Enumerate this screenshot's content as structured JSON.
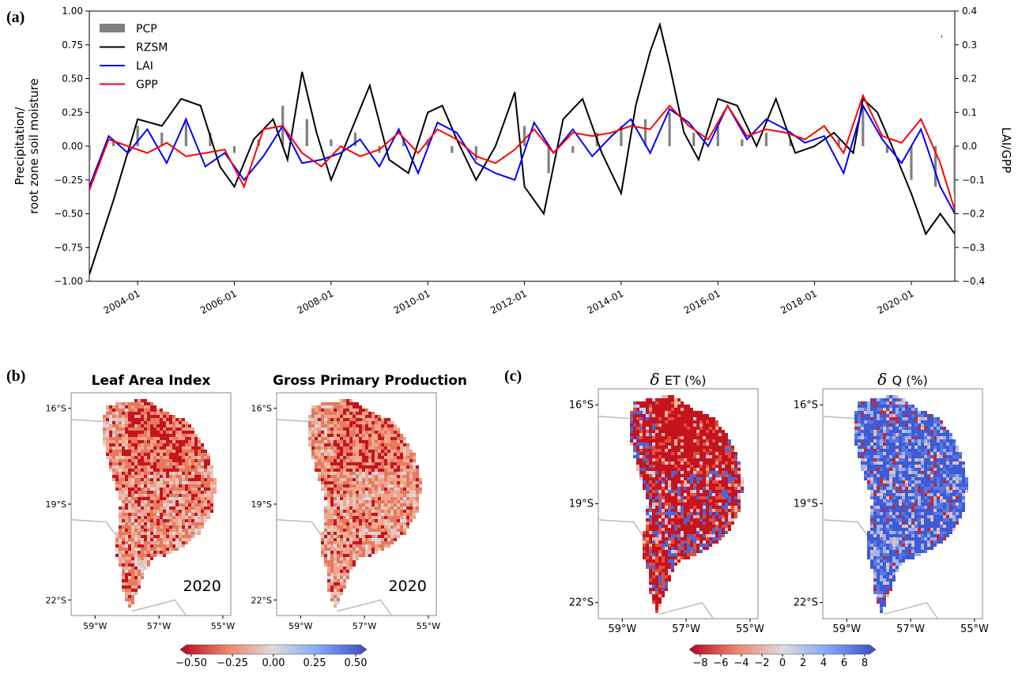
{
  "panel_labels": {
    "a": "(a)",
    "b": "(b)",
    "c": "(c)"
  },
  "chart_data": [
    {
      "type": "line",
      "panel": "(a)",
      "ylabel_left": "Precipitation/ root zone soil moisture",
      "ylabel_right": "LAI/GPP",
      "ylim_left": [
        -1.0,
        1.0
      ],
      "ylim_right": [
        -0.4,
        0.4
      ],
      "yticks_left": [
        "1.00",
        "0.75",
        "0.50",
        "0.25",
        "0.00",
        "−0.25",
        "−0.50",
        "−0.75",
        "−1.00"
      ],
      "yticks_right": [
        "0.4",
        "0.3",
        "0.2",
        "0.1",
        "0.0",
        "−0.1",
        "−0.2",
        "−0.3",
        "−0.4"
      ],
      "xlim": [
        2003.0,
        2020.9
      ],
      "xticks": [
        "2004-01",
        "2006-01",
        "2008-01",
        "2010-01",
        "2012-01",
        "2014-01",
        "2016-01",
        "2018-01",
        "2020-01"
      ],
      "legend_position": "top-left",
      "legend": [
        "PCP",
        "RZSM",
        "LAI",
        "GPP"
      ],
      "colors": {
        "PCP": "#808080",
        "RZSM": "#000000",
        "LAI": "#0000ff",
        "GPP": "#ff0000"
      },
      "series": [
        {
          "name": "PCP",
          "axis": "left",
          "kind": "bar",
          "x": [
            2003.0,
            2003.5,
            2004.0,
            2004.5,
            2005.0,
            2005.5,
            2006.0,
            2006.5,
            2007.0,
            2007.5,
            2008.0,
            2008.5,
            2009.0,
            2009.5,
            2010.0,
            2010.5,
            2011.0,
            2011.5,
            2012.0,
            2012.5,
            2013.0,
            2013.5,
            2014.0,
            2014.5,
            2015.0,
            2015.5,
            2016.0,
            2016.5,
            2017.0,
            2017.5,
            2018.0,
            2018.5,
            2019.0,
            2019.5,
            2020.0,
            2020.5,
            2020.9
          ],
          "values": [
            -0.1,
            0.05,
            0.15,
            0.1,
            0.2,
            0.1,
            -0.05,
            0.05,
            0.3,
            0.2,
            0.05,
            0.1,
            -0.05,
            0.05,
            0.05,
            -0.05,
            -0.1,
            0.0,
            0.15,
            -0.2,
            -0.05,
            0.1,
            0.15,
            0.2,
            0.25,
            0.1,
            0.15,
            0.05,
            0.1,
            0.05,
            0.0,
            0.05,
            0.3,
            -0.05,
            -0.25,
            -0.3,
            -0.35
          ]
        },
        {
          "name": "RZSM",
          "axis": "left",
          "x": [
            2003.0,
            2003.5,
            2004.0,
            2004.5,
            2004.9,
            2005.3,
            2005.7,
            2006.0,
            2006.4,
            2006.8,
            2007.1,
            2007.4,
            2007.7,
            2008.0,
            2008.4,
            2008.8,
            2009.2,
            2009.6,
            2010.0,
            2010.3,
            2010.6,
            2011.0,
            2011.4,
            2011.8,
            2012.0,
            2012.4,
            2012.8,
            2013.2,
            2013.6,
            2014.0,
            2014.3,
            2014.6,
            2014.8,
            2015.0,
            2015.3,
            2015.6,
            2016.0,
            2016.4,
            2016.8,
            2017.2,
            2017.6,
            2018.0,
            2018.4,
            2018.8,
            2019.0,
            2019.3,
            2019.6,
            2020.0,
            2020.3,
            2020.6,
            2020.9
          ],
          "values": [
            -0.95,
            -0.4,
            0.2,
            0.15,
            0.35,
            0.3,
            -0.15,
            -0.3,
            0.05,
            0.2,
            -0.1,
            0.55,
            0.1,
            -0.25,
            0.1,
            0.45,
            -0.1,
            -0.2,
            0.25,
            0.3,
            0.05,
            -0.25,
            0.0,
            0.4,
            -0.3,
            -0.5,
            0.2,
            0.35,
            -0.05,
            -0.35,
            0.3,
            0.7,
            0.9,
            0.6,
            0.1,
            -0.1,
            0.35,
            0.3,
            0.0,
            0.35,
            -0.05,
            0.0,
            0.1,
            -0.05,
            0.35,
            0.25,
            0.0,
            -0.35,
            -0.65,
            -0.5,
            -0.65
          ]
        },
        {
          "name": "LAI",
          "axis": "right",
          "x": [
            2003.0,
            2003.4,
            2003.8,
            2004.2,
            2004.6,
            2005.0,
            2005.4,
            2005.8,
            2006.2,
            2006.6,
            2007.0,
            2007.4,
            2007.8,
            2008.2,
            2008.6,
            2009.0,
            2009.4,
            2009.8,
            2010.2,
            2010.6,
            2011.0,
            2011.4,
            2011.8,
            2012.2,
            2012.6,
            2013.0,
            2013.4,
            2013.8,
            2014.2,
            2014.6,
            2015.0,
            2015.4,
            2015.8,
            2016.2,
            2016.6,
            2017.0,
            2017.4,
            2017.8,
            2018.2,
            2018.6,
            2019.0,
            2019.4,
            2019.8,
            2020.2,
            2020.6,
            2020.9
          ],
          "values": [
            -0.12,
            0.03,
            -0.02,
            0.05,
            -0.05,
            0.08,
            -0.06,
            -0.02,
            -0.1,
            -0.03,
            0.06,
            -0.05,
            -0.04,
            -0.02,
            0.02,
            -0.06,
            0.05,
            -0.08,
            0.07,
            0.04,
            -0.05,
            -0.08,
            -0.1,
            0.07,
            -0.02,
            0.05,
            -0.03,
            0.03,
            0.08,
            -0.02,
            0.11,
            0.07,
            0.0,
            0.12,
            0.02,
            0.08,
            0.05,
            0.01,
            0.03,
            -0.08,
            0.12,
            0.02,
            -0.05,
            0.05,
            -0.12,
            -0.2
          ]
        },
        {
          "name": "GPP",
          "axis": "right",
          "x": [
            2003.0,
            2003.4,
            2003.8,
            2004.2,
            2004.6,
            2005.0,
            2005.4,
            2005.8,
            2006.2,
            2006.6,
            2007.0,
            2007.4,
            2007.8,
            2008.2,
            2008.6,
            2009.0,
            2009.4,
            2009.8,
            2010.2,
            2010.6,
            2011.0,
            2011.4,
            2011.8,
            2012.2,
            2012.6,
            2013.0,
            2013.4,
            2013.8,
            2014.2,
            2014.6,
            2015.0,
            2015.4,
            2015.8,
            2016.2,
            2016.6,
            2017.0,
            2017.4,
            2017.8,
            2018.2,
            2018.6,
            2019.0,
            2019.4,
            2019.8,
            2020.2,
            2020.6,
            2020.9
          ],
          "values": [
            -0.13,
            0.02,
            0.0,
            -0.02,
            0.01,
            -0.03,
            -0.02,
            -0.01,
            -0.12,
            0.05,
            0.06,
            -0.02,
            -0.06,
            0.0,
            -0.03,
            -0.01,
            0.04,
            -0.02,
            0.05,
            0.02,
            -0.03,
            -0.05,
            -0.01,
            0.05,
            -0.02,
            0.04,
            0.03,
            0.04,
            0.06,
            0.05,
            0.12,
            0.06,
            0.02,
            0.12,
            0.03,
            0.05,
            0.04,
            0.02,
            0.06,
            -0.02,
            0.15,
            0.03,
            0.01,
            0.08,
            -0.05,
            -0.19
          ]
        }
      ]
    }
  ],
  "maps": [
    {
      "title": "Leaf Area Index",
      "year": "2020",
      "lat": [
        "16°S",
        "19°S",
        "22°S"
      ],
      "lon": [
        "59°W",
        "57°W",
        "55°W"
      ]
    },
    {
      "title": "Gross Primary Production",
      "year": "2020",
      "lat": [
        "16°S",
        "19°S",
        "22°S"
      ],
      "lon": [
        "59°W",
        "57°W",
        "55°W"
      ]
    },
    {
      "title_symbol": "δ",
      "title": "ET (%)",
      "lat": [
        "16°S",
        "19°S",
        "22°S"
      ],
      "lon": [
        "59°W",
        "57°W",
        "55°W"
      ]
    },
    {
      "title_symbol": "δ",
      "title": "Q (%)",
      "lat": [
        "16°S",
        "19°S",
        "22°S"
      ],
      "lon": [
        "59°W",
        "57°W",
        "55°W"
      ]
    }
  ],
  "colorbars": [
    {
      "ticks": [
        "−0.50",
        "−0.25",
        "0.00",
        "0.25",
        "0.50"
      ],
      "cmap": "coolwarm_r"
    },
    {
      "ticks": [
        "−8",
        "−6",
        "−4",
        "−2",
        "0",
        "2",
        "4",
        "6",
        "8"
      ],
      "cmap": "coolwarm_r"
    }
  ]
}
